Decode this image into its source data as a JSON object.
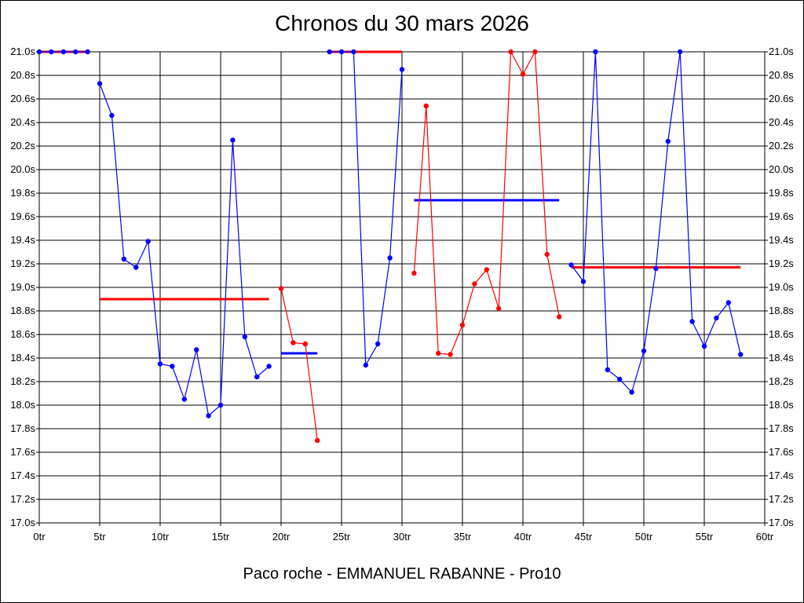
{
  "chart_data": {
    "type": "line",
    "title": "Chronos du 30 mars 2026",
    "footer": "Paco roche - EMMANUEL RABANNE - Pro10",
    "xlabel": "",
    "ylabel": "",
    "xlim": [
      0,
      60
    ],
    "ylim": [
      17.0,
      21.0
    ],
    "x_ticks": [
      0,
      5,
      10,
      15,
      20,
      25,
      30,
      35,
      40,
      45,
      50,
      55,
      60
    ],
    "x_tick_labels": [
      "0tr",
      "5tr",
      "10tr",
      "15tr",
      "20tr",
      "25tr",
      "30tr",
      "35tr",
      "40tr",
      "45tr",
      "50tr",
      "55tr",
      "60tr"
    ],
    "y_ticks": [
      17.0,
      17.2,
      17.4,
      17.6,
      17.8,
      18.0,
      18.2,
      18.4,
      18.6,
      18.8,
      19.0,
      19.2,
      19.4,
      19.6,
      19.8,
      20.0,
      20.2,
      20.4,
      20.6,
      20.8,
      21.0
    ],
    "y_tick_labels": [
      "17.0s",
      "17.2s",
      "17.4s",
      "17.6s",
      "17.8s",
      "18.0s",
      "18.2s",
      "18.4s",
      "18.6s",
      "18.8s",
      "19.0s",
      "19.2s",
      "19.4s",
      "19.6s",
      "19.8s",
      "20.0s",
      "20.2s",
      "20.4s",
      "20.6s",
      "20.8s",
      "21.0s"
    ],
    "grid": true,
    "colors": {
      "blue": "#0000ff",
      "red": "#ff0000"
    },
    "segments": [
      {
        "color": "blue",
        "x": [
          0,
          1,
          2,
          3,
          4
        ],
        "y": [
          21.0,
          21.0,
          21.0,
          21.0,
          21.0
        ],
        "avg_color": "red",
        "avg": 21.0,
        "avg_x": [
          0,
          4
        ]
      },
      {
        "color": "blue",
        "x": [
          5,
          6,
          7,
          8,
          9,
          10,
          11,
          12,
          13,
          14,
          15,
          16,
          17,
          18,
          19
        ],
        "y": [
          20.73,
          20.46,
          19.24,
          19.17,
          19.39,
          18.35,
          18.33,
          18.05,
          18.47,
          17.91,
          18.0,
          20.25,
          18.58,
          18.24,
          18.33
        ],
        "avg_color": "red",
        "avg": 18.9,
        "avg_x": [
          5,
          19
        ]
      },
      {
        "color": "red",
        "x": [
          20,
          21,
          22,
          23
        ],
        "y": [
          18.99,
          18.53,
          18.52,
          17.7
        ],
        "avg_color": "blue",
        "avg": 18.44,
        "avg_x": [
          20,
          23
        ]
      },
      {
        "color": "blue",
        "x": [
          24,
          25,
          26,
          27,
          28,
          29,
          30
        ],
        "y": [
          21.0,
          21.0,
          21.0,
          18.34,
          18.52,
          19.25,
          20.85
        ],
        "avg_color": "red",
        "avg": 21.0,
        "avg_x": [
          24,
          30
        ]
      },
      {
        "color": "red",
        "x": [
          31,
          32,
          33,
          34,
          35,
          36,
          37,
          38,
          39,
          40,
          41,
          42,
          43
        ],
        "y": [
          19.12,
          20.54,
          18.44,
          18.43,
          18.68,
          19.03,
          19.15,
          18.82,
          21.0,
          20.81,
          21.0,
          19.28,
          18.75
        ],
        "avg_color": "blue",
        "avg": 19.74,
        "avg_x": [
          31,
          43
        ]
      },
      {
        "color": "blue",
        "x": [
          44,
          45,
          46,
          47,
          48,
          49,
          50,
          51,
          52,
          53,
          54,
          55,
          56,
          57,
          58
        ],
        "y": [
          19.19,
          19.05,
          21.0,
          18.3,
          18.22,
          18.11,
          18.46,
          19.16,
          20.24,
          21.0,
          18.71,
          18.5,
          18.74,
          18.87,
          18.43
        ],
        "avg_color": "red",
        "avg": 19.17,
        "avg_x": [
          44,
          58
        ]
      }
    ]
  }
}
